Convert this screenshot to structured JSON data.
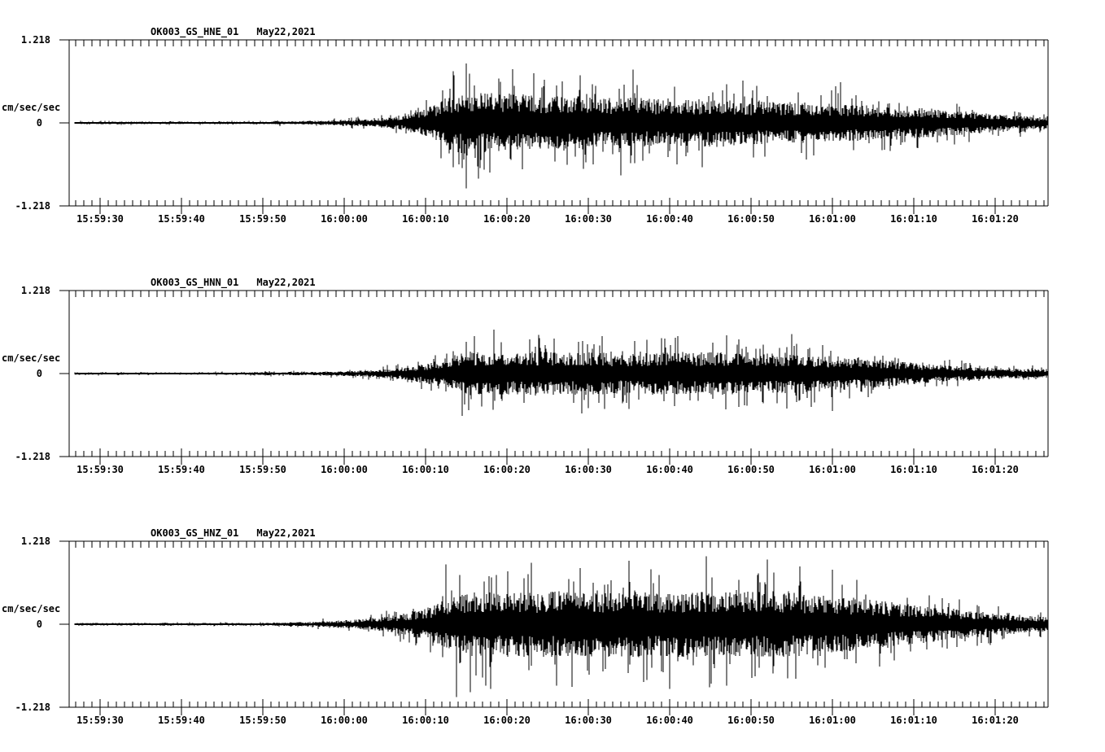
{
  "colors": {
    "foreground": "#000000",
    "background": "#ffffff"
  },
  "axes": {
    "y_max_label": "1.218",
    "y_zero_label": "0",
    "y_min_label": "-1.218",
    "y_unit": "cm/sec/sec",
    "ylim": [
      -1.218,
      1.218
    ],
    "x_tick_labels": [
      "15:59:30",
      "15:59:40",
      "15:59:50",
      "16:00:00",
      "16:00:10",
      "16:00:20",
      "16:00:30",
      "16:00:40",
      "16:00:50",
      "16:01:00",
      "16:01:10",
      "16:01:20"
    ],
    "x_minor_tick_seconds": 1,
    "x_major_tick_seconds": 10,
    "x_start": "15:59:26",
    "x_end": "16:01:26",
    "grid": "off",
    "legend": "none"
  },
  "chart_data": [
    {
      "type": "line",
      "station": "OK003_GS_HNE_01",
      "date": "May22,2021",
      "channel": "HNE",
      "ylabel": "cm/sec/sec",
      "ylim": [
        -1.218,
        1.218
      ],
      "x_start": "15:59:26",
      "x_end": "16:01:26",
      "peak_abs": 0.87,
      "envelope": [
        [
          26,
          0.022
        ],
        [
          49,
          0.022
        ],
        [
          51,
          0.026
        ],
        [
          52,
          0.032
        ],
        [
          53,
          0.026
        ],
        [
          56,
          0.035
        ],
        [
          60,
          0.05
        ],
        [
          64,
          0.08
        ],
        [
          67,
          0.13
        ],
        [
          69,
          0.2
        ],
        [
          71,
          0.33
        ],
        [
          73,
          0.5
        ],
        [
          75,
          0.6
        ],
        [
          78,
          0.52
        ],
        [
          81,
          0.55
        ],
        [
          84,
          0.48
        ],
        [
          88,
          0.5
        ],
        [
          92,
          0.45
        ],
        [
          94,
          0.5
        ],
        [
          97,
          0.45
        ],
        [
          101,
          0.42
        ],
        [
          105,
          0.45
        ],
        [
          110,
          0.4
        ],
        [
          115,
          0.38
        ],
        [
          120,
          0.35
        ],
        [
          124,
          0.32
        ],
        [
          128,
          0.3
        ],
        [
          132,
          0.27
        ],
        [
          136,
          0.22
        ],
        [
          140,
          0.17
        ],
        [
          143,
          0.13
        ],
        [
          146.5,
          0.1
        ]
      ],
      "spikes": [
        [
          73.5,
          0.7
        ],
        [
          75,
          0.87
        ],
        [
          76.5,
          -0.82
        ],
        [
          79,
          0.65
        ],
        [
          89,
          0.7
        ],
        [
          94,
          -0.77
        ],
        [
          95.5,
          0.78
        ],
        [
          104,
          -0.65
        ],
        [
          109,
          0.62
        ],
        [
          121,
          0.6
        ]
      ]
    },
    {
      "type": "line",
      "station": "OK003_GS_HNN_01",
      "date": "May22,2021",
      "channel": "HNN",
      "ylabel": "cm/sec/sec",
      "ylim": [
        -1.218,
        1.218
      ],
      "x_start": "15:59:26",
      "x_end": "16:01:26",
      "peak_abs": 0.62,
      "envelope": [
        [
          26,
          0.02
        ],
        [
          48,
          0.02
        ],
        [
          50,
          0.03
        ],
        [
          51,
          0.035
        ],
        [
          52,
          0.026
        ],
        [
          56,
          0.03
        ],
        [
          60,
          0.045
        ],
        [
          64,
          0.07
        ],
        [
          67,
          0.11
        ],
        [
          70,
          0.18
        ],
        [
          72,
          0.26
        ],
        [
          74,
          0.36
        ],
        [
          76,
          0.42
        ],
        [
          78,
          0.4
        ],
        [
          81,
          0.38
        ],
        [
          84,
          0.42
        ],
        [
          87,
          0.38
        ],
        [
          90,
          0.4
        ],
        [
          94,
          0.36
        ],
        [
          98,
          0.4
        ],
        [
          102,
          0.38
        ],
        [
          106,
          0.4
        ],
        [
          110,
          0.36
        ],
        [
          114,
          0.38
        ],
        [
          118,
          0.34
        ],
        [
          122,
          0.3
        ],
        [
          126,
          0.26
        ],
        [
          130,
          0.2
        ],
        [
          134,
          0.15
        ],
        [
          138,
          0.11
        ],
        [
          142,
          0.09
        ],
        [
          146.5,
          0.08
        ]
      ],
      "spikes": [
        [
          74.5,
          -0.62
        ],
        [
          76,
          0.55
        ],
        [
          84,
          0.52
        ],
        [
          92,
          -0.52
        ],
        [
          101,
          0.55
        ],
        [
          108.5,
          -0.49
        ],
        [
          115,
          0.58
        ],
        [
          120,
          -0.55
        ]
      ]
    },
    {
      "type": "line",
      "station": "OK003_GS_HNZ_01",
      "date": "May22,2021",
      "channel": "HNZ",
      "ylabel": "cm/sec/sec",
      "ylim": [
        -1.218,
        1.218
      ],
      "x_start": "15:59:26",
      "x_end": "16:01:26",
      "peak_abs": 1.07,
      "envelope": [
        [
          26,
          0.022
        ],
        [
          49,
          0.022
        ],
        [
          52,
          0.03
        ],
        [
          55,
          0.04
        ],
        [
          58,
          0.055
        ],
        [
          61,
          0.08
        ],
        [
          64,
          0.12
        ],
        [
          66,
          0.16
        ],
        [
          68,
          0.22
        ],
        [
          70,
          0.3
        ],
        [
          72,
          0.42
        ],
        [
          74,
          0.52
        ],
        [
          76,
          0.6
        ],
        [
          78,
          0.55
        ],
        [
          80,
          0.6
        ],
        [
          83,
          0.58
        ],
        [
          86,
          0.62
        ],
        [
          89,
          0.58
        ],
        [
          92,
          0.6
        ],
        [
          95,
          0.62
        ],
        [
          98,
          0.58
        ],
        [
          101,
          0.6
        ],
        [
          104,
          0.62
        ],
        [
          107,
          0.58
        ],
        [
          110,
          0.6
        ],
        [
          113,
          0.62
        ],
        [
          116,
          0.58
        ],
        [
          119,
          0.55
        ],
        [
          122,
          0.5
        ],
        [
          125,
          0.45
        ],
        [
          128,
          0.4
        ],
        [
          131,
          0.35
        ],
        [
          134,
          0.3
        ],
        [
          137,
          0.25
        ],
        [
          140,
          0.2
        ],
        [
          143,
          0.16
        ],
        [
          146.5,
          0.13
        ]
      ],
      "spikes": [
        [
          72.5,
          0.88
        ],
        [
          73.8,
          -1.07
        ],
        [
          75.5,
          -1.0
        ],
        [
          78,
          -0.95
        ],
        [
          83,
          0.9
        ],
        [
          88,
          -0.92
        ],
        [
          95,
          0.93
        ],
        [
          100,
          -0.95
        ],
        [
          104.5,
          1.0
        ],
        [
          107,
          -0.9
        ],
        [
          112,
          0.95
        ],
        [
          116,
          0.85
        ],
        [
          120,
          0.8
        ]
      ]
    }
  ]
}
